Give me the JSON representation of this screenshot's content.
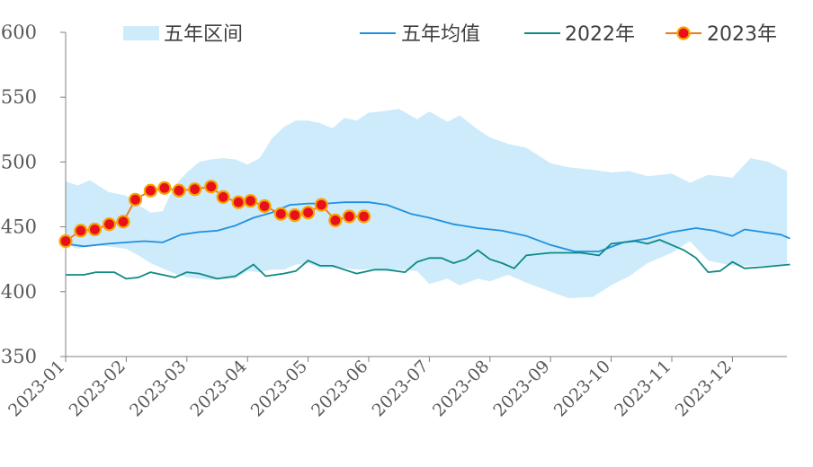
{
  "chart_data": {
    "type": "line",
    "ylim": [
      350,
      600
    ],
    "yticks": [
      350,
      400,
      450,
      500,
      550,
      600
    ],
    "x_tick_labels": [
      "2023-01",
      "2023-02",
      "2023-03",
      "2023-04",
      "2023-05",
      "2023-06",
      "2023-07",
      "2023-08",
      "2023-09",
      "2023-10",
      "2023-11",
      "2023-12"
    ],
    "legend_placement": "top",
    "grid": false,
    "colors": {
      "band": "#cdebfb",
      "avg": "#1e90e0",
      "y2022": "#0e8a84",
      "y2023_line": "#f07820",
      "y2023_marker": "#e8101a"
    },
    "legend": {
      "band": "五年区间",
      "avg": "五年均值",
      "y2022": "2022年",
      "y2023": "2023年"
    },
    "band": {
      "x": [
        1.0,
        1.2,
        1.4,
        1.7,
        2.0,
        2.2,
        2.4,
        2.6,
        2.8,
        3.0,
        3.2,
        3.4,
        3.6,
        3.8,
        4.0,
        4.2,
        4.4,
        4.6,
        4.8,
        5.0,
        5.2,
        5.4,
        5.6,
        5.8,
        6.0,
        6.2,
        6.5,
        6.8,
        7.0,
        7.3,
        7.5,
        7.8,
        8.0,
        8.3,
        8.6,
        9.0,
        9.3,
        9.7,
        10.0,
        10.3,
        10.6,
        11.0,
        11.3,
        11.6,
        12.0,
        12.3,
        12.6,
        12.9
      ],
      "upper": [
        485,
        482,
        486,
        477,
        474,
        467,
        461,
        462,
        482,
        492,
        500,
        502,
        503,
        502,
        498,
        503,
        518,
        527,
        532,
        532,
        530,
        526,
        534,
        532,
        538,
        539,
        541,
        533,
        539,
        531,
        536,
        525,
        519,
        514,
        511,
        499,
        496,
        494,
        492,
        493,
        489,
        491,
        484,
        490,
        488,
        503,
        500,
        493
      ],
      "lower": [
        437,
        433,
        436,
        435,
        433,
        428,
        422,
        418,
        414,
        411,
        410,
        409,
        410,
        410,
        416,
        415,
        417,
        417,
        421,
        422,
        418,
        418,
        418,
        417,
        417,
        417,
        417,
        416,
        406,
        410,
        405,
        410,
        408,
        413,
        407,
        400,
        395,
        396,
        405,
        412,
        422,
        430,
        439,
        424,
        420,
        420,
        420,
        421
      ]
    },
    "series": [
      {
        "key": "avg",
        "x": [
          1.0,
          1.3,
          1.7,
          2.0,
          2.3,
          2.6,
          2.9,
          3.2,
          3.5,
          3.8,
          4.1,
          4.4,
          4.7,
          5.0,
          5.3,
          5.6,
          6.0,
          6.3,
          6.7,
          7.0,
          7.4,
          7.8,
          8.2,
          8.6,
          9.0,
          9.4,
          9.8,
          10.2,
          10.6,
          11.0,
          11.4,
          11.7,
          12.0,
          12.2,
          12.5,
          12.8,
          12.95
        ],
        "y": [
          437,
          435,
          437,
          438,
          439,
          438,
          444,
          446,
          447,
          451,
          457,
          461,
          467,
          468,
          468,
          469,
          469,
          467,
          460,
          457,
          452,
          449,
          447,
          443,
          436,
          431,
          431,
          438,
          441,
          446,
          449,
          447,
          443,
          448,
          446,
          444,
          441
        ]
      },
      {
        "key": "y2022",
        "x": [
          1.0,
          1.3,
          1.5,
          1.8,
          2.0,
          2.2,
          2.4,
          2.6,
          2.8,
          3.0,
          3.2,
          3.5,
          3.8,
          4.1,
          4.3,
          4.6,
          4.8,
          5.0,
          5.2,
          5.4,
          5.6,
          5.8,
          6.1,
          6.3,
          6.6,
          6.8,
          7.0,
          7.2,
          7.4,
          7.6,
          7.8,
          8.0,
          8.2,
          8.4,
          8.6,
          8.8,
          9.0,
          9.2,
          9.5,
          9.8,
          10.0,
          10.2,
          10.4,
          10.6,
          10.8,
          11.0,
          11.2,
          11.4,
          11.6,
          11.8,
          12.0,
          12.2,
          12.5,
          12.95
        ],
        "y": [
          413,
          413,
          415,
          415,
          410,
          411,
          415,
          413,
          411,
          415,
          414,
          410,
          412,
          421,
          412,
          414,
          416,
          424,
          420,
          420,
          417,
          414,
          417,
          417,
          415,
          423,
          426,
          426,
          422,
          425,
          432,
          425,
          422,
          418,
          428,
          429,
          430,
          430,
          430,
          428,
          437,
          438,
          439,
          437,
          440,
          436,
          432,
          426,
          415,
          416,
          423,
          418,
          419,
          421
        ]
      },
      {
        "key": "y2023",
        "x": [
          1.0,
          1.25,
          1.48,
          1.72,
          1.95,
          2.15,
          2.4,
          2.63,
          2.87,
          3.13,
          3.4,
          3.6,
          3.85,
          4.05,
          4.28,
          4.55,
          4.78,
          5.0,
          5.22,
          5.45,
          5.68,
          5.92
        ],
        "y": [
          439,
          447,
          448,
          452,
          454,
          471,
          478,
          480,
          478,
          479,
          481,
          473,
          469,
          470,
          466,
          460,
          459,
          461,
          467,
          455,
          458,
          458
        ]
      }
    ]
  }
}
